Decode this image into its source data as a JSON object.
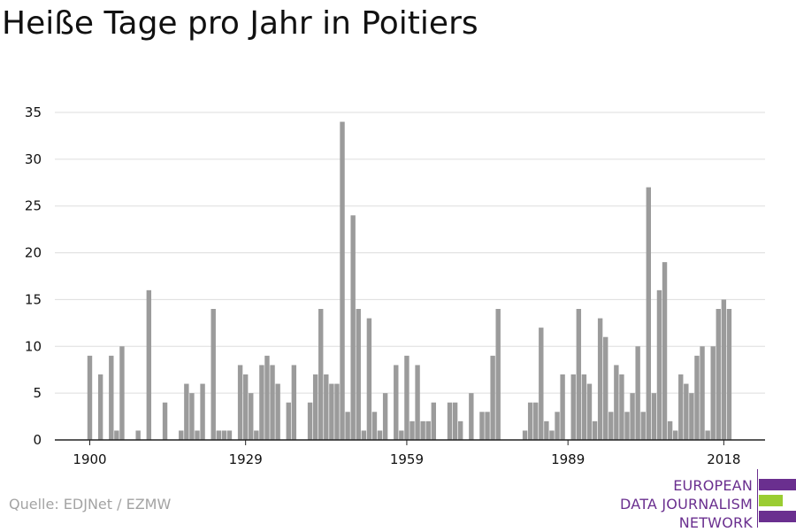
{
  "title": "Heiße Tage pro Jahr in Poitiers",
  "source": "Quelle: EDJNet / EZMW",
  "logo": {
    "lines": [
      "EUROPEAN",
      "DATA JOURNALISM",
      "NETWORK"
    ],
    "colors": [
      "#6a2f8f",
      "#9acd32",
      "#6a2f8f"
    ]
  },
  "colors": {
    "bar": "#9b9b9b",
    "grid": "#dddddd",
    "axis": "#222222",
    "text": "#111111"
  },
  "chart_data": {
    "type": "bar",
    "title": "Heiße Tage pro Jahr in Poitiers",
    "xlabel": "",
    "ylabel": "",
    "ylim": [
      0,
      35
    ],
    "yticks": [
      0,
      5,
      10,
      15,
      20,
      25,
      30,
      35
    ],
    "xticks": [
      1900,
      1929,
      1959,
      1989,
      2018
    ],
    "xlim": [
      1894,
      2024
    ],
    "grid": true,
    "x": [
      1900,
      1901,
      1902,
      1903,
      1904,
      1905,
      1906,
      1907,
      1908,
      1909,
      1910,
      1911,
      1912,
      1913,
      1914,
      1915,
      1916,
      1917,
      1918,
      1919,
      1920,
      1921,
      1922,
      1923,
      1924,
      1925,
      1926,
      1927,
      1928,
      1929,
      1930,
      1931,
      1932,
      1933,
      1934,
      1935,
      1936,
      1937,
      1938,
      1939,
      1940,
      1941,
      1942,
      1943,
      1944,
      1945,
      1946,
      1947,
      1948,
      1949,
      1950,
      1951,
      1952,
      1953,
      1954,
      1955,
      1956,
      1957,
      1958,
      1959,
      1960,
      1961,
      1962,
      1963,
      1964,
      1965,
      1966,
      1967,
      1968,
      1969,
      1970,
      1971,
      1972,
      1973,
      1974,
      1975,
      1976,
      1977,
      1978,
      1979,
      1980,
      1981,
      1982,
      1983,
      1984,
      1985,
      1986,
      1987,
      1988,
      1989,
      1990,
      1991,
      1992,
      1993,
      1994,
      1995,
      1996,
      1997,
      1998,
      1999,
      2000,
      2001,
      2002,
      2003,
      2004,
      2005,
      2006,
      2007,
      2008,
      2009,
      2010,
      2011,
      2012,
      2013,
      2014,
      2015,
      2016,
      2017,
      2018,
      2019
    ],
    "values": [
      9,
      0,
      7,
      0,
      9,
      1,
      10,
      0,
      0,
      1,
      0,
      16,
      0,
      0,
      4,
      0,
      0,
      1,
      6,
      5,
      1,
      6,
      0,
      14,
      1,
      1,
      1,
      0,
      8,
      7,
      5,
      1,
      8,
      9,
      8,
      6,
      0,
      4,
      8,
      0,
      0,
      4,
      7,
      14,
      7,
      6,
      6,
      34,
      3,
      24,
      14,
      1,
      13,
      3,
      1,
      5,
      0,
      8,
      1,
      9,
      2,
      8,
      2,
      2,
      4,
      0,
      0,
      4,
      4,
      2,
      0,
      5,
      0,
      3,
      3,
      9,
      14,
      0,
      0,
      0,
      0,
      1,
      4,
      4,
      12,
      2,
      1,
      3,
      7,
      0,
      7,
      14,
      7,
      6,
      2,
      13,
      11,
      3,
      8,
      7,
      3,
      5,
      10,
      3,
      27,
      5,
      16,
      19,
      2,
      1,
      7,
      6,
      5,
      9,
      10,
      1,
      10,
      14,
      15,
      14
    ]
  }
}
